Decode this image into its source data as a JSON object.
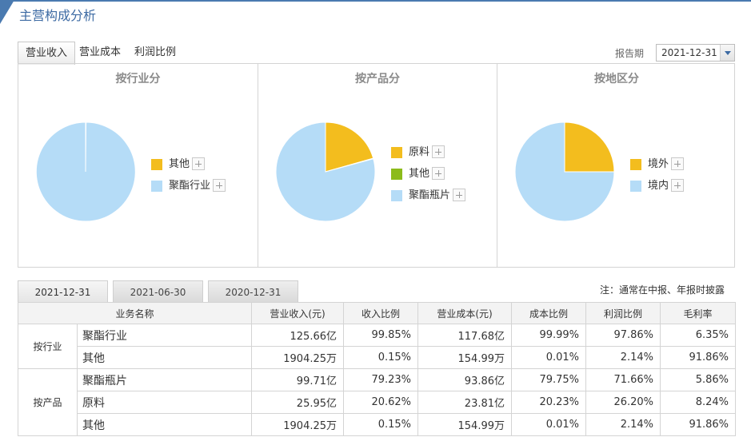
{
  "header": {
    "title": "主营构成分析"
  },
  "tabs": [
    {
      "label": "营业收入",
      "active": true
    },
    {
      "label": "营业成本",
      "active": false
    },
    {
      "label": "利润比例",
      "active": false
    }
  ],
  "report": {
    "label": "报告期",
    "value": "2021-12-31"
  },
  "colors": {
    "yellow": "#f3bd1e",
    "lightblue": "#b5dcf7",
    "green": "#8cbb1a",
    "titleblue": "#3c6aa3"
  },
  "charts": {
    "industry": {
      "title": "按行业分",
      "slices": [
        {
          "name": "其他",
          "value": 0.15,
          "color": "#f3bd1e"
        },
        {
          "name": "聚酯行业",
          "value": 99.85,
          "color": "#b5dcf7"
        }
      ]
    },
    "product": {
      "title": "按产品分",
      "slices": [
        {
          "name": "原料",
          "value": 20.62,
          "color": "#f3bd1e"
        },
        {
          "name": "其他",
          "value": 0.15,
          "color": "#8cbb1a"
        },
        {
          "name": "聚酯瓶片",
          "value": 79.23,
          "color": "#b5dcf7"
        }
      ]
    },
    "region": {
      "title": "按地区分",
      "slices": [
        {
          "name": "境外",
          "value": 25,
          "color": "#f3bd1e"
        },
        {
          "name": "境内",
          "value": 75,
          "color": "#b5dcf7"
        }
      ]
    }
  },
  "date_tabs": [
    {
      "label": "2021-12-31",
      "active": true
    },
    {
      "label": "2021-06-30",
      "active": false
    },
    {
      "label": "2020-12-31",
      "active": false
    }
  ],
  "note": "注：通常在中报、年报时披露",
  "table": {
    "headers": [
      "业务名称",
      "营业收入(元)",
      "收入比例",
      "营业成本(元)",
      "成本比例",
      "利润比例",
      "毛利率"
    ],
    "groups": [
      {
        "label": "按行业",
        "rows": [
          {
            "name": "聚酯行业",
            "revenue": "125.66亿",
            "rev_ratio": "99.85%",
            "cost": "117.68亿",
            "cost_ratio": "99.99%",
            "profit_ratio": "97.86%",
            "margin": "6.35%"
          },
          {
            "name": "其他",
            "revenue": "1904.25万",
            "rev_ratio": "0.15%",
            "cost": "154.99万",
            "cost_ratio": "0.01%",
            "profit_ratio": "2.14%",
            "margin": "91.86%"
          }
        ]
      },
      {
        "label": "按产品",
        "rows": [
          {
            "name": "聚酯瓶片",
            "revenue": "99.71亿",
            "rev_ratio": "79.23%",
            "cost": "93.86亿",
            "cost_ratio": "79.75%",
            "profit_ratio": "71.66%",
            "margin": "5.86%"
          },
          {
            "name": "原料",
            "revenue": "25.95亿",
            "rev_ratio": "20.62%",
            "cost": "23.81亿",
            "cost_ratio": "20.23%",
            "profit_ratio": "26.20%",
            "margin": "8.24%"
          },
          {
            "name": "其他",
            "revenue": "1904.25万",
            "rev_ratio": "0.15%",
            "cost": "154.99万",
            "cost_ratio": "0.01%",
            "profit_ratio": "2.14%",
            "margin": "91.86%"
          }
        ]
      }
    ]
  }
}
